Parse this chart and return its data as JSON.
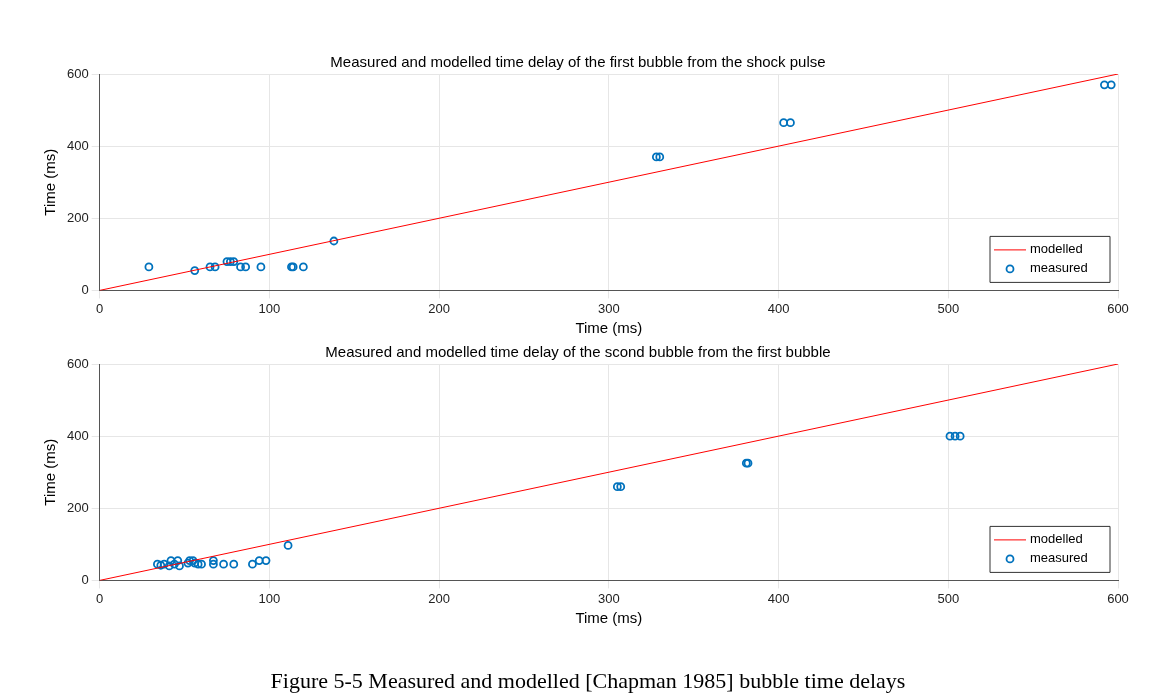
{
  "chart_data": [
    {
      "type": "scatter",
      "title": "Measured and modelled time delay of the first bubble from the shock pulse",
      "xlabel": "Time (ms)",
      "ylabel": "Time (ms)",
      "xlim": [
        0,
        600
      ],
      "xticks": [
        0,
        100,
        200,
        300,
        400,
        500,
        600
      ],
      "ylim": [
        0,
        600
      ],
      "yticks": [
        0,
        200,
        400,
        600
      ],
      "grid": true,
      "legend": "bottom right",
      "series": [
        {
          "name": "modelled",
          "type": "line",
          "color": "#ff0000",
          "marker": "none",
          "line_style": "solid",
          "x": [
            0,
            600
          ],
          "values": [
            0,
            600
          ]
        },
        {
          "name": "measured",
          "type": "scatter",
          "color": "#0072bd",
          "marker": "circle",
          "x": [
            29,
            56,
            65,
            68,
            75,
            77,
            79,
            83,
            86,
            95,
            113,
            114,
            120,
            138,
            328,
            330,
            403,
            407,
            592,
            596
          ],
          "values": [
            65,
            55,
            65,
            65,
            80,
            80,
            80,
            65,
            65,
            65,
            65,
            65,
            65,
            137,
            370,
            370,
            465,
            465,
            570,
            570
          ]
        }
      ]
    },
    {
      "type": "scatter",
      "title": "Measured and modelled time delay of the scond bubble from the first bubble",
      "xlabel": "Time (ms)",
      "ylabel": "Time (ms)",
      "xlim": [
        0,
        600
      ],
      "xticks": [
        0,
        100,
        200,
        300,
        400,
        500,
        600
      ],
      "ylim": [
        0,
        600
      ],
      "yticks": [
        0,
        200,
        400,
        600
      ],
      "grid": true,
      "legend": "bottom right",
      "annotations": [
        "Figure 5-5 Measured and modelled [Chapman 1985] bubble time delays"
      ],
      "series": [
        {
          "name": "modelled",
          "type": "line",
          "color": "#ff0000",
          "marker": "none",
          "line_style": "solid",
          "x": [
            0,
            600
          ],
          "values": [
            0,
            600
          ]
        },
        {
          "name": "measured",
          "type": "scatter",
          "color": "#0072bd",
          "marker": "circle",
          "x": [
            34,
            36,
            38,
            40,
            41,
            42,
            44,
            46,
            47,
            52,
            53,
            55,
            56,
            58,
            60,
            67,
            67,
            73,
            79,
            90,
            94,
            98,
            111,
            305,
            307,
            381,
            382,
            501,
            504,
            507
          ],
          "values": [
            45,
            42,
            45,
            null,
            40,
            55,
            45,
            55,
            40,
            48,
            55,
            55,
            48,
            45,
            45,
            45,
            55,
            45,
            45,
            45,
            55,
            55,
            97,
            260,
            260,
            325,
            325,
            400,
            400,
            400
          ]
        }
      ]
    }
  ]
}
